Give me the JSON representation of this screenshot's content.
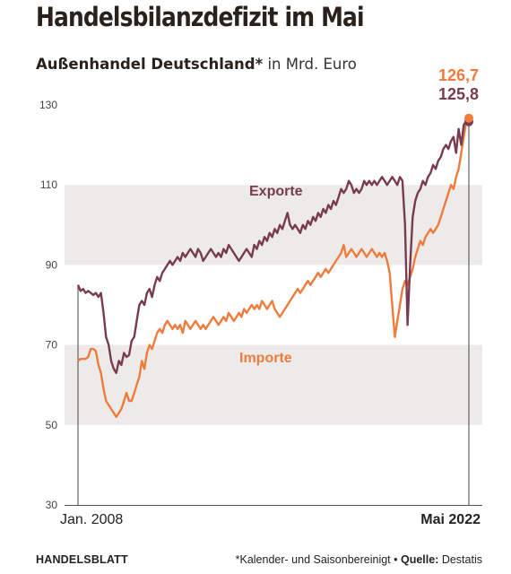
{
  "header": {
    "title": "Handelsbilanzdefizit im Mai",
    "subtitle_bold": "Außenhandel Deutschland",
    "subtitle_star": "*",
    "subtitle_unit": " in Mrd. Euro"
  },
  "footer": {
    "brand": "HANDELSBLATT",
    "note": "*Kalender- und Saisonbereinigt • ",
    "source_label": "Quelle:",
    "source": " Destatis"
  },
  "chart_data": {
    "type": "line",
    "x_start": "Jan. 2008",
    "x_end": "Mai 2022",
    "x_tick_labels": [
      "Jan. 2008",
      "Mai 2022"
    ],
    "y_ticks": [
      30,
      50,
      70,
      90,
      110,
      130
    ],
    "ylim": [
      30,
      130
    ],
    "grid": "horizontal bands",
    "series": [
      {
        "name": "Exporte",
        "color": "#7a3b4e",
        "end_label": "125,8",
        "values": [
          85,
          83.5,
          84,
          83,
          83.5,
          83,
          82.5,
          83,
          82,
          83,
          78,
          72,
          70,
          66,
          64,
          63,
          66,
          65,
          68,
          67,
          67.5,
          71,
          72,
          76,
          80,
          81,
          80,
          83,
          84,
          82,
          85,
          87,
          86,
          88,
          89,
          90,
          91,
          90,
          91,
          92,
          91,
          93,
          92,
          93,
          94,
          93,
          92,
          94,
          93,
          91,
          92,
          93,
          94,
          93,
          92,
          93,
          92,
          94,
          93,
          95,
          94,
          93,
          92,
          91,
          92,
          93,
          94,
          93,
          92,
          95,
          94,
          96,
          95,
          97,
          96,
          98,
          97,
          99,
          98,
          100,
          99,
          101,
          103,
          100,
          99,
          100,
          99,
          98,
          100,
          99,
          101,
          100,
          102,
          101,
          103,
          102,
          104,
          103,
          105,
          104,
          106,
          105,
          107,
          109,
          108,
          109,
          111,
          110,
          108,
          109,
          108,
          109,
          111,
          110,
          111,
          110,
          111,
          110,
          111,
          112,
          111,
          110,
          111,
          112,
          111,
          110,
          112,
          111,
          100,
          75,
          90,
          102,
          106,
          108,
          109,
          111,
          110,
          112,
          113,
          115,
          114,
          116,
          117,
          119,
          120,
          119,
          121,
          122,
          118,
          124,
          120,
          125,
          126,
          125.8
        ]
      },
      {
        "name": "Importe",
        "color": "#ef7b3c",
        "end_label": "126,7",
        "values": [
          66,
          66.5,
          66.5,
          66.5,
          67,
          69,
          69,
          68.5,
          65,
          63,
          59,
          56,
          55,
          54,
          53,
          52,
          53,
          54,
          56,
          58,
          56,
          56,
          58,
          60,
          62,
          66,
          64,
          68,
          70,
          69,
          71,
          73,
          74,
          73,
          75,
          76,
          75,
          74,
          75,
          74,
          75,
          73,
          76,
          75,
          74,
          75,
          76,
          75,
          74,
          75,
          74,
          75,
          76,
          77,
          76,
          75,
          76,
          77,
          76,
          78,
          77,
          76,
          77,
          78,
          77,
          79,
          78,
          79,
          80,
          79,
          80,
          79,
          81,
          80,
          79,
          80,
          81,
          79,
          78,
          77,
          78,
          79,
          80,
          81,
          82,
          83,
          84,
          83,
          84,
          85,
          86,
          85,
          86,
          87,
          88,
          87,
          88,
          89,
          88,
          89,
          90,
          91,
          92,
          93,
          95,
          92,
          93,
          94,
          93,
          92,
          93,
          94,
          93,
          92,
          93,
          94,
          93,
          92,
          93,
          92,
          93,
          91,
          88,
          80,
          72,
          76,
          80,
          84,
          86,
          85,
          87,
          89,
          92,
          94,
          96,
          95,
          97,
          98,
          99,
          98,
          99,
          100,
          102,
          104,
          106,
          108,
          110,
          109,
          112,
          114,
          118,
          122,
          126,
          126.7
        ]
      }
    ]
  }
}
